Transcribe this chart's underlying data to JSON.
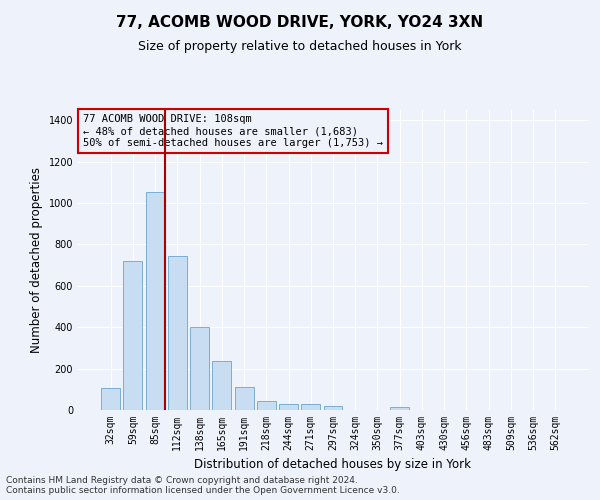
{
  "title_line1": "77, ACOMB WOOD DRIVE, YORK, YO24 3XN",
  "title_line2": "Size of property relative to detached houses in York",
  "xlabel": "Distribution of detached houses by size in York",
  "ylabel": "Number of detached properties",
  "bar_color": "#c8ddf2",
  "bar_edge_color": "#7aaed6",
  "categories": [
    "32sqm",
    "59sqm",
    "85sqm",
    "112sqm",
    "138sqm",
    "165sqm",
    "191sqm",
    "218sqm",
    "244sqm",
    "271sqm",
    "297sqm",
    "324sqm",
    "350sqm",
    "377sqm",
    "403sqm",
    "430sqm",
    "456sqm",
    "483sqm",
    "509sqm",
    "536sqm",
    "562sqm"
  ],
  "values": [
    105,
    720,
    1055,
    745,
    400,
    235,
    110,
    45,
    27,
    27,
    20,
    0,
    0,
    15,
    0,
    0,
    0,
    0,
    0,
    0,
    0
  ],
  "ylim": [
    0,
    1450
  ],
  "yticks": [
    0,
    200,
    400,
    600,
    800,
    1000,
    1200,
    1400
  ],
  "vline_x": 2.43,
  "vline_color": "#aa0000",
  "annotation_text_line1": "77 ACOMB WOOD DRIVE: 108sqm",
  "annotation_text_line2": "← 48% of detached houses are smaller (1,683)",
  "annotation_text_line3": "50% of semi-detached houses are larger (1,753) →",
  "annotation_box_color": "#cc0000",
  "background_color": "#eef2fa",
  "grid_color": "#ffffff",
  "footer_line1": "Contains HM Land Registry data © Crown copyright and database right 2024.",
  "footer_line2": "Contains public sector information licensed under the Open Government Licence v3.0."
}
